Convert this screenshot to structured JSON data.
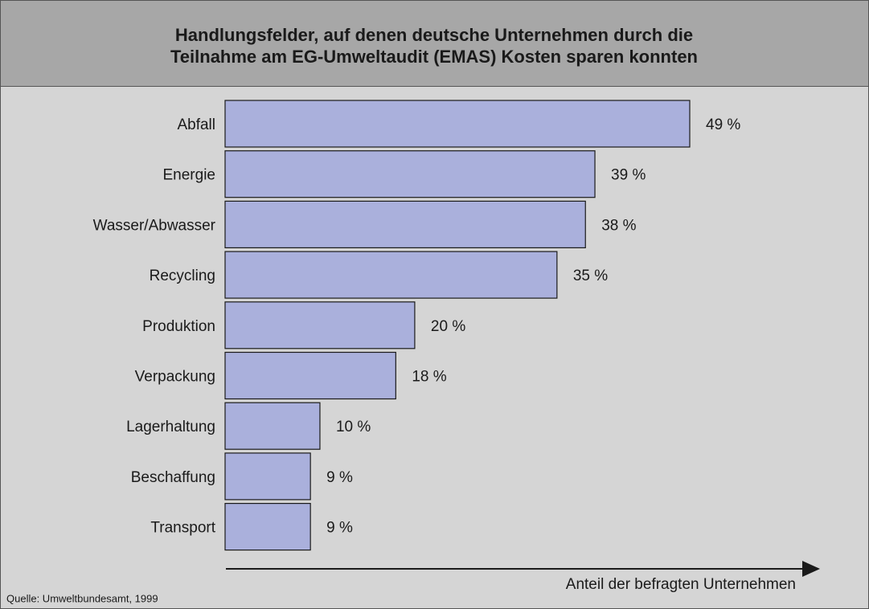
{
  "chart_data": {
    "type": "bar",
    "orientation": "horizontal",
    "title": [
      "Handlungsfelder, auf denen deutsche Unternehmen durch die",
      "Teilnahme am EG-Umweltaudit (EMAS) Kosten sparen konnten"
    ],
    "categories": [
      "Abfall",
      "Energie",
      "Wasser/Abwasser",
      "Recycling",
      "Produktion",
      "Verpackung",
      "Lagerhaltung",
      "Beschaffung",
      "Transport"
    ],
    "values": [
      49,
      39,
      38,
      35,
      20,
      18,
      10,
      9,
      9
    ],
    "value_labels": [
      "49 %",
      "39 %",
      "38 %",
      "35 %",
      "20 %",
      "18 %",
      "10 %",
      "9 %",
      "9 %"
    ],
    "color": "#aab0dc",
    "xlabel": "Anteil der befragten Unternehmen",
    "source": "Quelle: Umweltbundesamt, 1999"
  }
}
